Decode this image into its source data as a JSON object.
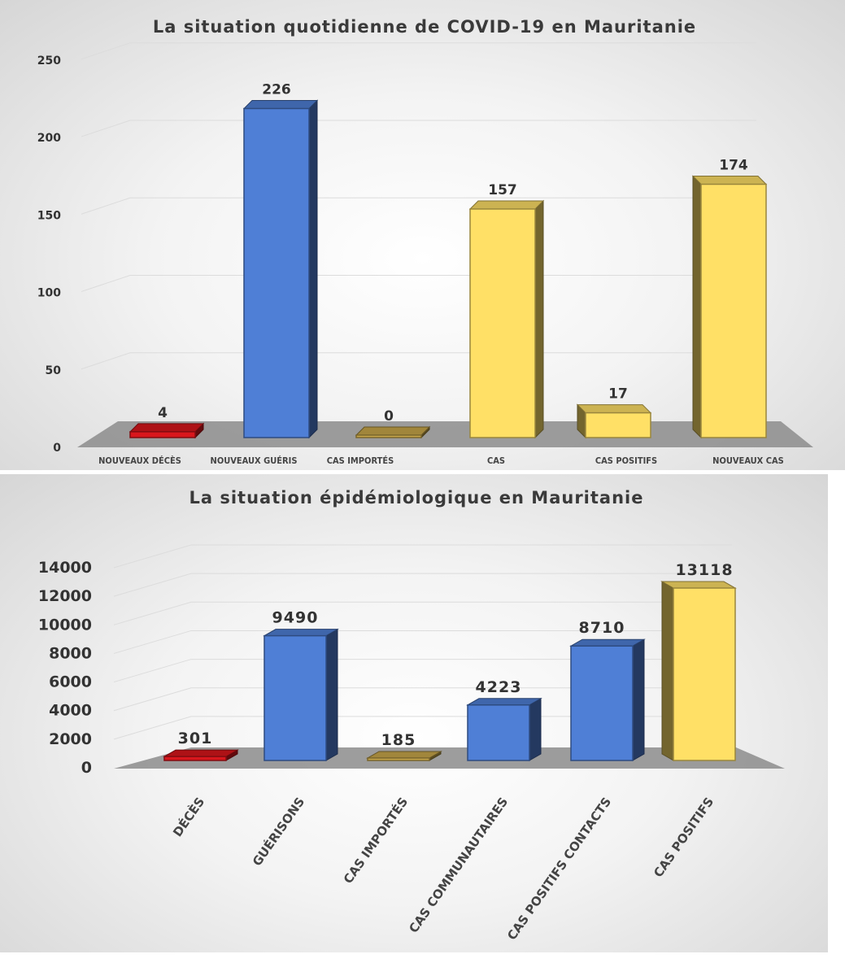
{
  "colors": {
    "deaths": "#d9161c",
    "blue": "#4f7fd6",
    "imported": "#c9a84a",
    "yellow": "#ffe066"
  },
  "chart_data": [
    {
      "type": "bar",
      "title": "La situation quotidienne de COVID-19 en Mauritanie",
      "categories": [
        "NOUVEAUX DÉCÈS",
        "NOUVEAUX GUÉRIS",
        "CAS IMPORTÉS",
        "CAS",
        "CAS POSITIFS",
        "NOUVEAUX CAS"
      ],
      "values": [
        4,
        226,
        0,
        157,
        17,
        174
      ],
      "value_labels": [
        "4",
        "226",
        "0",
        "157",
        "17",
        "174"
      ],
      "bar_colors": [
        "#d9161c",
        "#4f7fd6",
        "#c9a84a",
        "#ffe066",
        "#ffe066",
        "#ffe066"
      ],
      "yticks": [
        "0",
        "50",
        "100",
        "150",
        "200",
        "250"
      ],
      "ylim": [
        0,
        250
      ],
      "grid": true
    },
    {
      "type": "bar",
      "title": "La situation épidémiologique en Mauritanie",
      "categories": [
        "DÉCÈS",
        "GUÉRISONS",
        "CAS IMPORTÉS",
        "CAS COMMUNAUTAIRES",
        "CAS POSITIFS   CONTACTS",
        "CAS POSITIFS"
      ],
      "values": [
        301,
        9490,
        185,
        4223,
        8710,
        13118
      ],
      "value_labels": [
        "301",
        "9490",
        "185",
        "4223",
        "8710",
        "13118"
      ],
      "bar_colors": [
        "#d9161c",
        "#4f7fd6",
        "#c9a84a",
        "#4f7fd6",
        "#4f7fd6",
        "#ffe066"
      ],
      "yticks": [
        "0",
        "2000",
        "4000",
        "6000",
        "8000",
        "10000",
        "12000",
        "14000"
      ],
      "ylim": [
        0,
        14000
      ],
      "grid": true
    }
  ]
}
